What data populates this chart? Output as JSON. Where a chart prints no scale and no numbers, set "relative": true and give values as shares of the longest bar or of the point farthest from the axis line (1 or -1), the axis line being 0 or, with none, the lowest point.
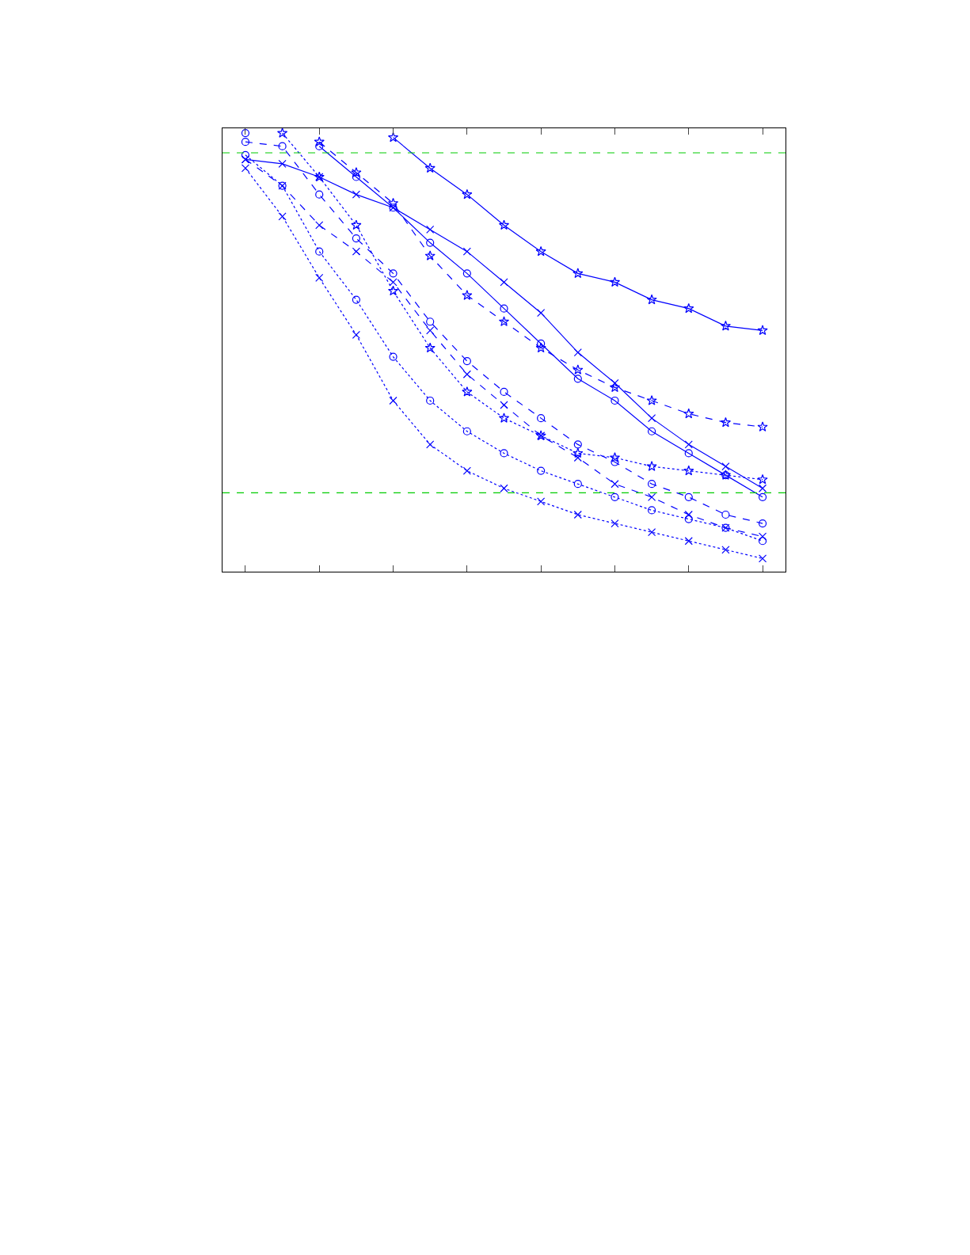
{
  "chart_data": {
    "type": "line",
    "relative": true,
    "categories": [
      null,
      null,
      null,
      null,
      null,
      null,
      null,
      null,
      null,
      null,
      null,
      null,
      null,
      null,
      null
    ],
    "legend": false,
    "series": [
      {
        "color": "#0000ff",
        "marker": "star",
        "line_style": "solid",
        "values": [
          null,
          null,
          null,
          null,
          0.99,
          0.92,
          0.86,
          0.79,
          0.73,
          0.68,
          0.66,
          0.62,
          0.6,
          0.56,
          0.55
        ]
      },
      {
        "color": "#0000ff",
        "marker": "star",
        "line_style": "dashed",
        "values": [
          null,
          null,
          0.98,
          0.91,
          0.84,
          0.72,
          0.63,
          0.57,
          0.51,
          0.46,
          0.42,
          0.39,
          0.36,
          0.34,
          0.33
        ]
      },
      {
        "color": "#0000ff",
        "marker": "cross",
        "line_style": "solid",
        "values": [
          0.94,
          0.93,
          0.9,
          0.86,
          0.83,
          0.78,
          0.73,
          0.66,
          0.59,
          0.5,
          0.43,
          0.35,
          0.29,
          0.24,
          0.19
        ]
      },
      {
        "color": "#0000ff",
        "marker": "star",
        "line_style": "dotted",
        "values": [
          null,
          1.0,
          0.9,
          0.79,
          0.64,
          0.51,
          0.41,
          0.35,
          0.31,
          0.27,
          0.26,
          0.24,
          0.23,
          0.22,
          0.21
        ]
      },
      {
        "color": "#0000ff",
        "marker": "circle",
        "line_style": "solid",
        "values": [
          1.0,
          null,
          0.97,
          0.9,
          0.83,
          0.75,
          0.68,
          0.6,
          0.52,
          0.44,
          0.39,
          0.32,
          0.27,
          0.22,
          0.17
        ]
      },
      {
        "color": "#0000ff",
        "marker": "circle",
        "line_style": "dashed",
        "values": [
          0.98,
          0.97,
          0.86,
          0.76,
          0.68,
          0.57,
          0.48,
          0.41,
          0.35,
          0.29,
          0.25,
          0.2,
          0.17,
          0.13,
          0.11
        ]
      },
      {
        "color": "#0000ff",
        "marker": "cross",
        "line_style": "dashed",
        "values": [
          0.94,
          0.88,
          0.79,
          0.73,
          0.66,
          0.55,
          0.45,
          0.38,
          0.31,
          0.26,
          0.2,
          0.17,
          0.13,
          0.1,
          0.08
        ]
      },
      {
        "color": "#0000ff",
        "marker": "circle",
        "line_style": "dotted",
        "values": [
          0.95,
          0.88,
          0.73,
          0.62,
          0.49,
          0.39,
          0.32,
          0.27,
          0.23,
          0.2,
          0.17,
          0.14,
          0.12,
          0.1,
          0.07
        ]
      },
      {
        "color": "#0000ff",
        "marker": "cross",
        "line_style": "dotted",
        "values": [
          0.92,
          0.81,
          0.67,
          0.54,
          0.39,
          0.29,
          0.23,
          0.19,
          0.16,
          0.13,
          0.11,
          0.09,
          0.07,
          0.05,
          0.03
        ]
      }
    ],
    "ref_lines": [
      {
        "axis": "y",
        "value": 0.955,
        "color": "#00cc00",
        "line_style": "dashed"
      },
      {
        "axis": "y",
        "value": 0.18,
        "color": "#00cc00",
        "line_style": "dashed"
      }
    ]
  }
}
